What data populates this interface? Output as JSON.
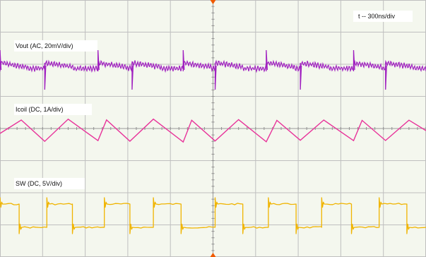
{
  "chart_data": {
    "type": "line",
    "title": "",
    "annotations": {
      "timebase": "t -- 300ns/div"
    },
    "grid": true,
    "grid_divisions": {
      "x": 10,
      "y": 8
    },
    "time_per_div_ns": 300,
    "trigger_marker": "top-center",
    "colors": {
      "background": "#f4f7ee",
      "grid": "#bfbfbf",
      "vout": "#a020c0",
      "icoil": "#e8339a",
      "sw": "#f0b400",
      "trigger": "#f05a00"
    },
    "series": [
      {
        "name": "Vout (AC, 20mV/div)",
        "key": "vout",
        "coupling": "AC",
        "scale": "20mV/div",
        "waveform": "switching ripple with spikes at each SW edge",
        "spike_times_div": [
          0.0,
          1.05,
          2.3,
          3.1,
          4.3,
          5.05,
          6.25,
          7.05,
          8.3,
          9.05
        ]
      },
      {
        "name": "Icoil (DC, 1A/div)",
        "key": "icoil",
        "coupling": "DC",
        "scale": "1A/div",
        "waveform": "triangle",
        "peak_times_div": [
          0.5,
          1.6,
          2.5,
          3.6,
          4.5,
          5.6,
          6.5,
          7.6,
          8.5,
          9.6
        ],
        "valley_times_div": [
          1.05,
          2.3,
          3.05,
          4.3,
          5.05,
          6.25,
          7.05,
          8.3,
          9.05
        ]
      },
      {
        "name": "SW (DC, 5V/div)",
        "key": "sw",
        "coupling": "DC",
        "scale": "5V/div",
        "waveform": "square",
        "high_intervals_div": [
          [
            0.0,
            0.45
          ],
          [
            1.1,
            1.7
          ],
          [
            2.45,
            3.05
          ],
          [
            3.6,
            4.25
          ],
          [
            5.05,
            5.7
          ],
          [
            6.3,
            6.95
          ],
          [
            7.55,
            8.25
          ],
          [
            8.9,
            9.55
          ]
        ]
      }
    ]
  }
}
